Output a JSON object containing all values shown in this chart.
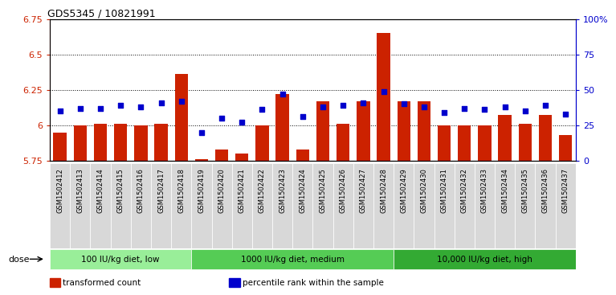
{
  "title": "GDS5345 / 10821991",
  "categories": [
    "GSM1502412",
    "GSM1502413",
    "GSM1502414",
    "GSM1502415",
    "GSM1502416",
    "GSM1502417",
    "GSM1502418",
    "GSM1502419",
    "GSM1502420",
    "GSM1502421",
    "GSM1502422",
    "GSM1502423",
    "GSM1502424",
    "GSM1502425",
    "GSM1502426",
    "GSM1502427",
    "GSM1502428",
    "GSM1502429",
    "GSM1502430",
    "GSM1502431",
    "GSM1502432",
    "GSM1502433",
    "GSM1502434",
    "GSM1502435",
    "GSM1502436",
    "GSM1502437"
  ],
  "bar_values": [
    5.95,
    6.0,
    6.01,
    6.01,
    6.0,
    6.01,
    6.36,
    5.76,
    5.83,
    5.8,
    6.0,
    6.22,
    5.83,
    6.17,
    6.01,
    6.17,
    6.65,
    6.17,
    6.17,
    6.0,
    6.0,
    6.0,
    6.07,
    6.01,
    6.07,
    5.93
  ],
  "dot_values": [
    35,
    37,
    37,
    39,
    38,
    41,
    42,
    20,
    30,
    27,
    36,
    47,
    31,
    38,
    39,
    41,
    49,
    40,
    38,
    34,
    37,
    36,
    38,
    35,
    39,
    33
  ],
  "ymin": 5.75,
  "ymax": 6.75,
  "yticks": [
    5.75,
    6.0,
    6.25,
    6.5,
    6.75
  ],
  "ytick_labels": [
    "5.75",
    "6",
    "6.25",
    "6.5",
    "6.75"
  ],
  "right_yticks": [
    0,
    25,
    50,
    75,
    100
  ],
  "right_ytick_labels": [
    "0",
    "25",
    "50",
    "75",
    "100%"
  ],
  "grid_values": [
    6.0,
    6.25,
    6.5
  ],
  "bar_color": "#cc2200",
  "dot_color": "#0000cc",
  "plot_bg": "#ffffff",
  "tick_bg": "#d8d8d8",
  "groups": [
    {
      "label": "100 IU/kg diet, low",
      "start": 0,
      "end": 7,
      "color": "#99ee99"
    },
    {
      "label": "1000 IU/kg diet, medium",
      "start": 7,
      "end": 17,
      "color": "#55cc55"
    },
    {
      "label": "10,000 IU/kg diet, high",
      "start": 17,
      "end": 26,
      "color": "#33aa33"
    }
  ],
  "legend_items": [
    {
      "label": "transformed count",
      "color": "#cc2200"
    },
    {
      "label": "percentile rank within the sample",
      "color": "#0000cc"
    }
  ],
  "dose_label": "dose"
}
